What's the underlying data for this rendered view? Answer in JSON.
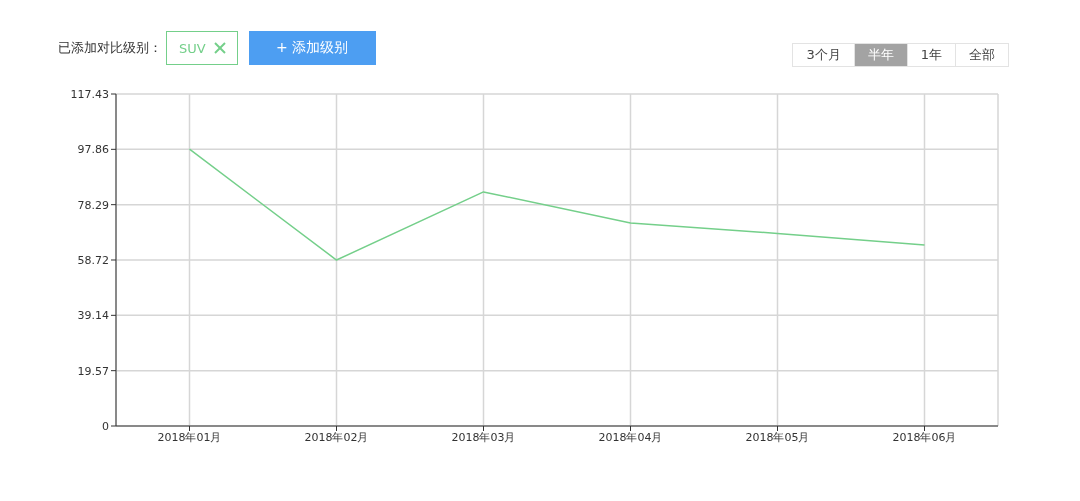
{
  "chart_data": {
    "type": "line",
    "legend_title": "已添加对比级别：",
    "legend": "top left",
    "categories": [
      "2018年01月",
      "2018年02月",
      "2018年03月",
      "2018年04月",
      "2018年05月",
      "2018年06月"
    ],
    "series": [
      {
        "name": "SUV",
        "color": "#74cf8a",
        "values": [
          97.9,
          58.7,
          82.8,
          71.8,
          68.1,
          64.0
        ]
      }
    ],
    "ylim": [
      0,
      117.43
    ],
    "yticks": [
      0,
      19.57,
      39.14,
      58.72,
      78.29,
      97.86,
      117.43
    ],
    "grid": true,
    "line_style": "solid",
    "annotations": [
      "+ 添加级别",
      "3个月",
      "半年",
      "1年",
      "全部"
    ]
  }
}
